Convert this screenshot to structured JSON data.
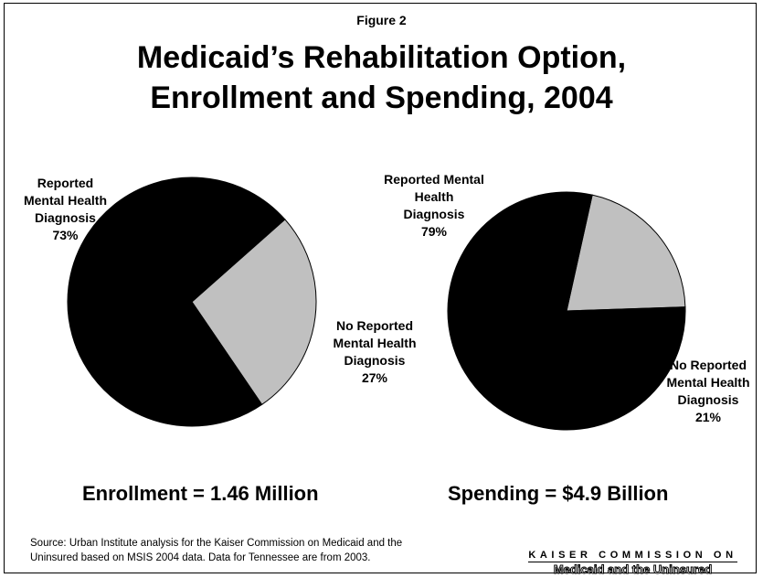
{
  "figure_label": "Figure 2",
  "title_line1": "Medicaid’s Rehabilitation Option,",
  "title_line2": "Enrollment and Spending, 2004",
  "chart_data": [
    {
      "type": "pie",
      "summary": "Enrollment = 1.46 Million",
      "slices": [
        {
          "label_lines": [
            "Reported",
            "Mental Health",
            "Diagnosis"
          ],
          "percent_label": "73%",
          "value": 73,
          "color": "#000000"
        },
        {
          "label_lines": [
            "No Reported",
            "Mental Health",
            "Diagnosis"
          ],
          "percent_label": "27%",
          "value": 27,
          "color": "#c0c0c0"
        }
      ]
    },
    {
      "type": "pie",
      "summary": "Spending = $4.9 Billion",
      "slices": [
        {
          "label_lines": [
            "Reported Mental",
            "Health",
            "Diagnosis"
          ],
          "percent_label": "79%",
          "value": 79,
          "color": "#000000"
        },
        {
          "label_lines": [
            "No Reported",
            "Mental Health",
            "Diagnosis"
          ],
          "percent_label": "21%",
          "value": 21,
          "color": "#c0c0c0"
        }
      ]
    }
  ],
  "source_line1": "Source: Urban Institute analysis for the Kaiser Commission on Medicaid and the",
  "source_line2": "Uninsured based on MSIS 2004 data.  Data for Tennessee are from 2003.",
  "logo_line1": "KAISER COMMISSION ON",
  "logo_line2": "Medicaid and the Uninsured"
}
